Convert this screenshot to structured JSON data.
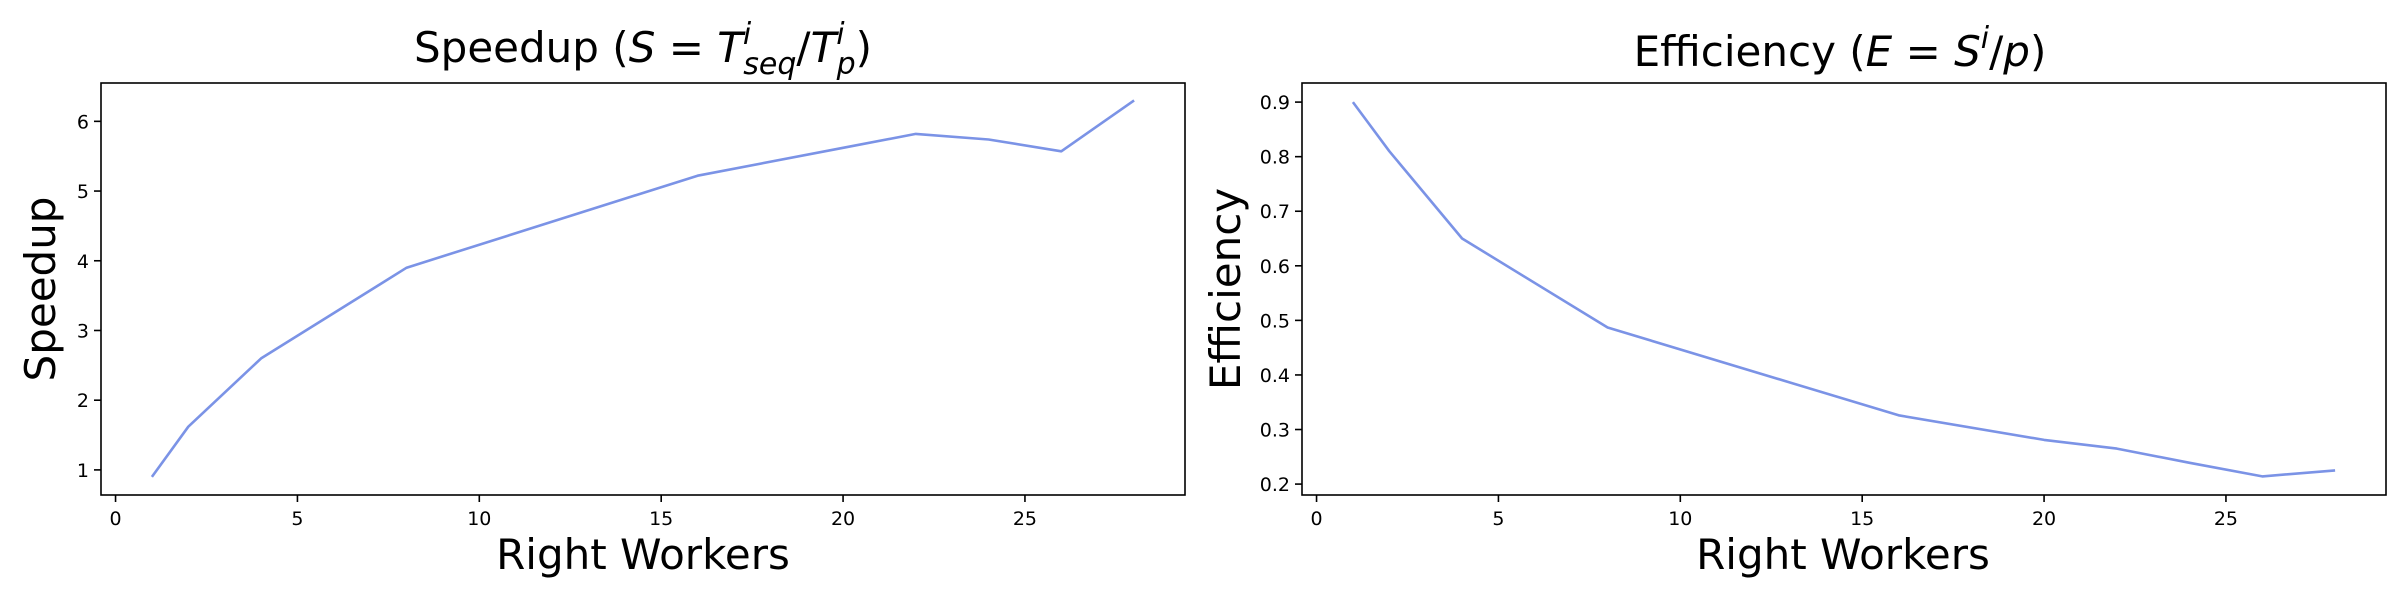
{
  "colors": {
    "line": "#7b93e6"
  },
  "chart_data": [
    {
      "type": "line",
      "title": "Speedup (S = T^i_seq/T^i_p)",
      "xlabel": "Right Workers",
      "ylabel": "Speedup",
      "x": [
        1,
        2,
        4,
        8,
        16,
        20,
        22,
        24,
        26,
        28
      ],
      "series": [
        {
          "values": [
            0.9,
            1.62,
            2.6,
            3.9,
            5.22,
            5.62,
            5.82,
            5.74,
            5.57,
            6.3
          ]
        }
      ],
      "xlim": [
        -0.4,
        29.4
      ],
      "ylim": [
        0.64,
        6.55
      ],
      "xticks": [
        0,
        5,
        10,
        15,
        20,
        25
      ],
      "yticks": [
        1,
        2,
        3,
        4,
        5,
        6
      ],
      "grid": false,
      "legend": false
    },
    {
      "type": "line",
      "title": "Efficiency (E = S^i/p)",
      "xlabel": "Right Workers",
      "ylabel": "Efficiency",
      "x": [
        1,
        2,
        4,
        8,
        16,
        20,
        22,
        24,
        26,
        28
      ],
      "series": [
        {
          "values": [
            0.9,
            0.81,
            0.65,
            0.487,
            0.326,
            0.281,
            0.265,
            0.239,
            0.214,
            0.225
          ]
        }
      ],
      "xlim": [
        -0.4,
        29.4
      ],
      "ylim": [
        0.18,
        0.935
      ],
      "xticks": [
        0,
        5,
        10,
        15,
        20,
        25
      ],
      "yticks": [
        0.2,
        0.3,
        0.4,
        0.5,
        0.6,
        0.7,
        0.8,
        0.9
      ],
      "grid": false,
      "legend": false
    }
  ]
}
